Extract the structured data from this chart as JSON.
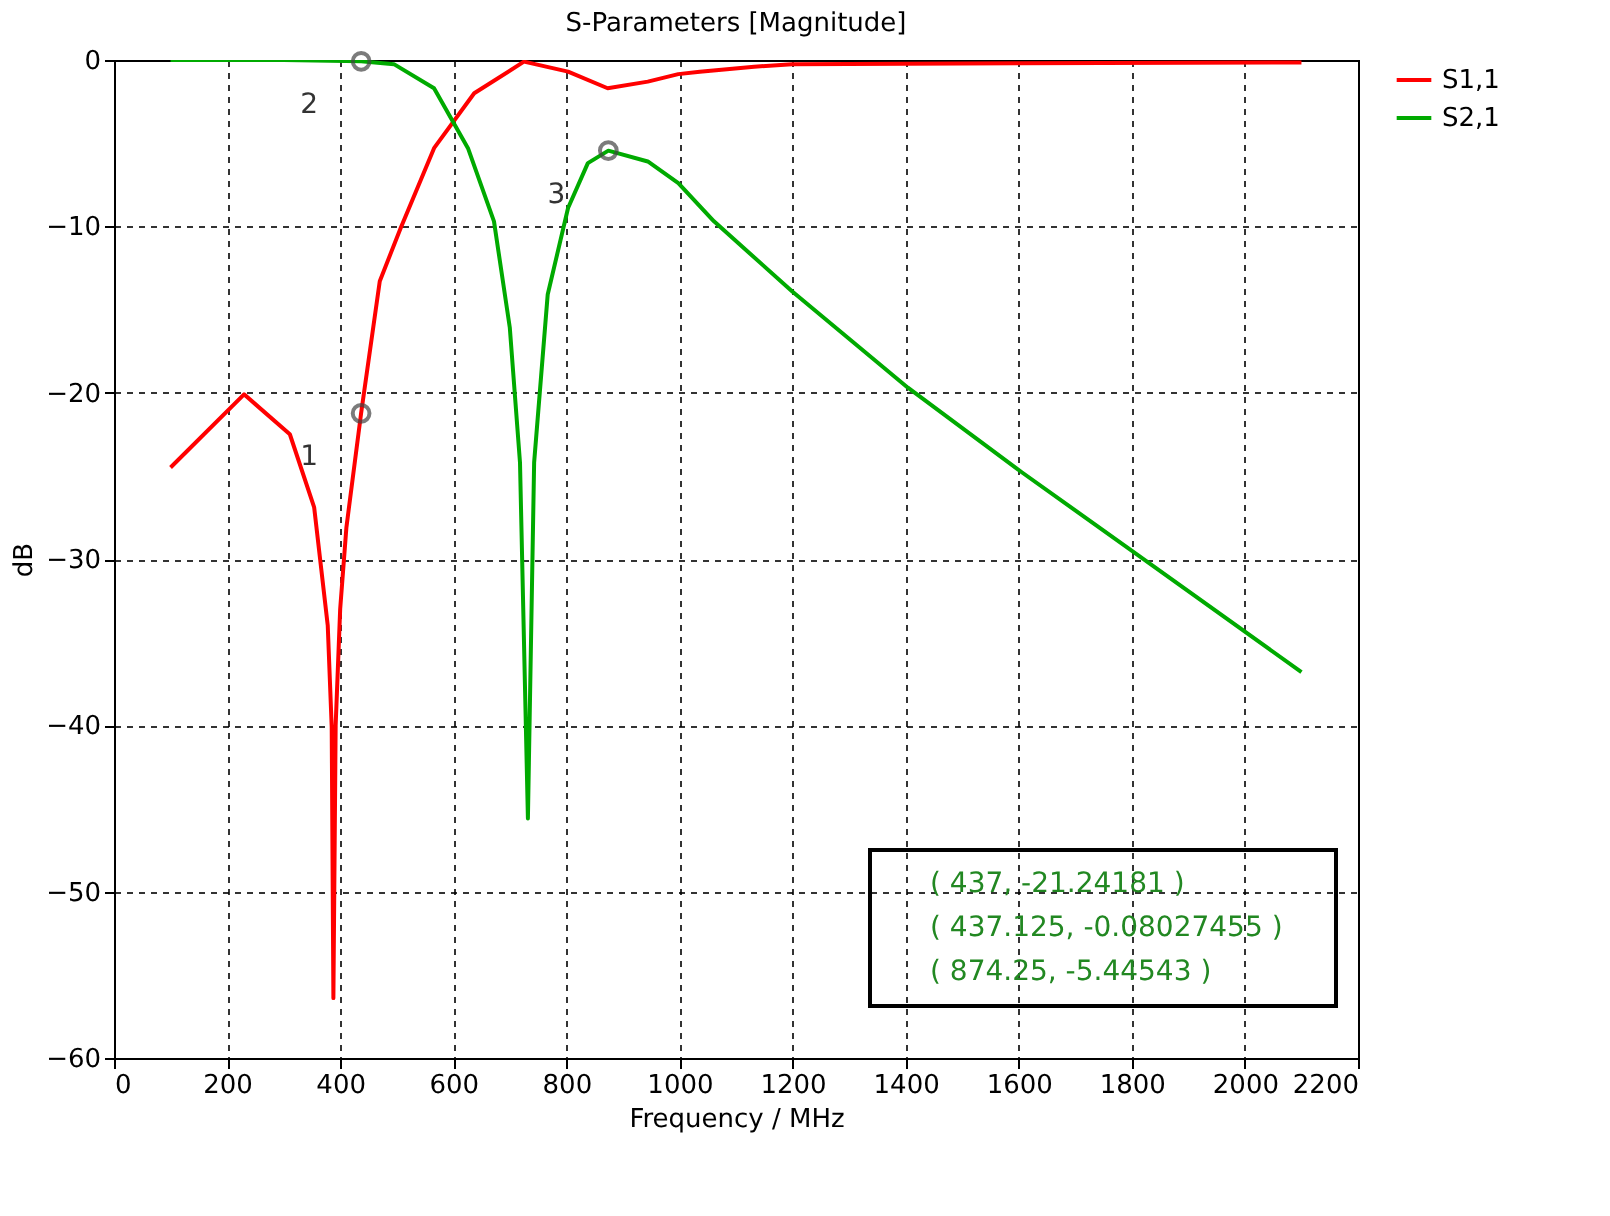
{
  "chart_data": {
    "type": "line",
    "title": "S-Parameters [Magnitude]",
    "xlabel": "Frequency / MHz",
    "ylabel": "dB",
    "xlim": [
      0,
      2200
    ],
    "xticks": [
      0,
      200,
      400,
      600,
      800,
      1000,
      1200,
      1400,
      1600,
      1800,
      2000,
      2200
    ],
    "ylim": [
      -60,
      0
    ],
    "yticks": [
      -60,
      -50,
      -40,
      -30,
      -20,
      -10,
      0
    ],
    "grid": true,
    "legend": "top right",
    "line_style": "solid",
    "marker": "none",
    "series": [
      {
        "name": "S1,1",
        "color": "#ff0000",
        "x": [
          100,
          230,
          311,
          354,
          378,
          385,
          388,
          392,
          400,
          411,
          437,
          470,
          507,
          566,
          637,
          725,
          803,
          873,
          944,
          998,
          1036,
          1132,
          1199,
          1600,
          2100
        ],
        "values": [
          -24.5,
          -20.1,
          -22.5,
          -26.9,
          -34,
          -40.1,
          -56.4,
          -40,
          -33,
          -28.1,
          -21.24,
          -13.3,
          -10.1,
          -5.3,
          -2.0,
          -0.1,
          -0.7,
          -1.7,
          -1.3,
          -0.85,
          -0.7,
          -0.4,
          -0.25,
          -0.2,
          -0.15
        ]
      },
      {
        "name": "S2,1",
        "color": "#00aa00",
        "x": [
          100,
          300,
          437.125,
          495,
          566,
          626,
          672,
          700,
          718,
          732,
          743,
          767,
          803,
          838,
          874.25,
          944,
          998,
          1061,
          1199,
          1404,
          1606,
          1804,
          2100
        ],
        "values": [
          0,
          0,
          -0.08,
          -0.25,
          -1.7,
          -5.3,
          -9.7,
          -16.1,
          -24.2,
          -45.6,
          -24.2,
          -14.1,
          -8.9,
          -6.2,
          -5.45,
          -6.1,
          -7.4,
          -9.7,
          -13.9,
          -19.7,
          -24.8,
          -29.6,
          -36.8
        ]
      }
    ],
    "annotations": [
      {
        "text": "1",
        "x": 437,
        "y": -21.24181
      },
      {
        "text": "2",
        "x": 437.125,
        "y": -0.08027455
      },
      {
        "text": "3",
        "x": 874.25,
        "y": -5.44543
      },
      "( 437, -21.24181 )",
      "( 437.125, -0.08027455 )",
      "( 874.25, -5.44543 )"
    ]
  }
}
